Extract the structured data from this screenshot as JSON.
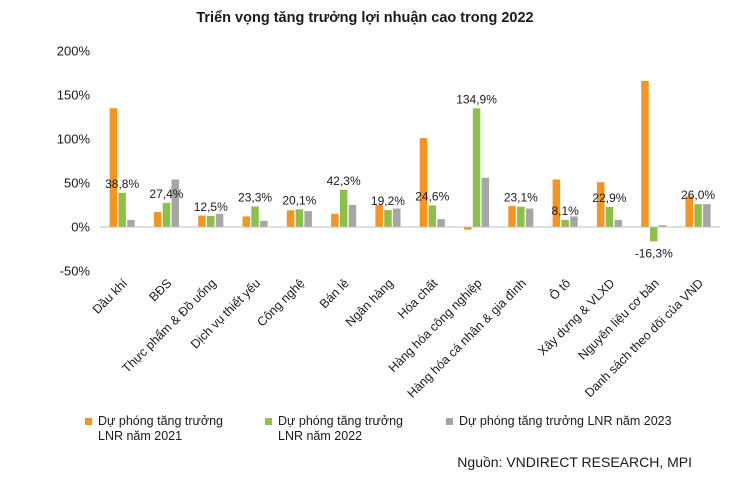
{
  "chart_data": {
    "type": "bar",
    "title": "Triển vọng tăng trưởng lợi nhuận cao trong 2022",
    "categories": [
      "Dầu khí",
      "BĐS",
      "Thực phẩm & Đồ uống",
      "Dịch vụ thiết yếu",
      "Công nghệ",
      "Bán lẻ",
      "Ngân hàng",
      "Hóa chất",
      "Hàng hóa công nghiệp",
      "Hàng hóa cá nhân & gia đình",
      "Ô tô",
      "Xây dựng & VLXD",
      "Nguyên liệu cơ bản",
      "Danh sách theo dõi của VND"
    ],
    "series": [
      {
        "name": "Dự phóng tăng trưởng LNR năm 2021",
        "color": "#F7941D",
        "values": [
          135,
          17,
          13,
          12,
          19,
          15,
          25,
          101,
          -3,
          24,
          54,
          51,
          166,
          35
        ]
      },
      {
        "name": "Dự phóng tăng trưởng LNR năm 2022",
        "color": "#8DC04A",
        "values": [
          38.8,
          27.4,
          12.5,
          23.3,
          20.1,
          42.3,
          19.2,
          24.6,
          134.9,
          23.1,
          8.1,
          22.9,
          -16.3,
          26.0
        ]
      },
      {
        "name": "Dự phóng tăng trưởng LNR năm 2023",
        "color": "#A6A6A6",
        "values": [
          8,
          54,
          15,
          7,
          18,
          25,
          21,
          9,
          56,
          21,
          12,
          8,
          2,
          26
        ]
      }
    ],
    "data_labels": [
      "38,8%",
      "27,4%",
      "12,5%",
      "23,3%",
      "20,1%",
      "42,3%",
      "19,2%",
      "24,6%",
      "134,9%",
      "23,1%",
      "8,1%",
      "22,9%",
      "-16,3%",
      "26,0%"
    ],
    "yticks": [
      -50,
      0,
      50,
      100,
      150,
      200
    ],
    "ytick_labels": [
      "-50%",
      "0%",
      "50%",
      "100%",
      "150%",
      "200%"
    ],
    "ylim": [
      -50,
      200
    ],
    "grid": false,
    "legend": "bottom"
  },
  "source": "Nguồn: VNDIRECT RESEARCH, MPI"
}
